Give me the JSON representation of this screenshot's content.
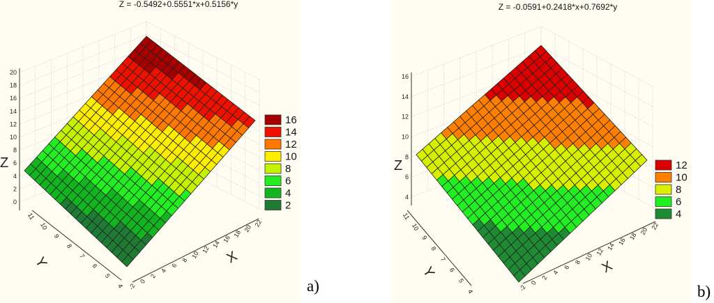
{
  "chart_data": [
    {
      "type": "surface",
      "panel_label": "a)",
      "title": "Z = -0.5492+0.5551*x+0.5156*y",
      "equation": {
        "intercept": -0.5492,
        "cx": 0.5551,
        "cy": 0.5156
      },
      "xlabel": "X",
      "ylabel": "Y",
      "zlabel": "Z",
      "xlim": [
        -2,
        22
      ],
      "ylim": [
        4,
        11
      ],
      "zlim": [
        0,
        20
      ],
      "x_ticks": [
        "-2",
        "0",
        "2",
        "4",
        "6",
        "8",
        "10",
        "12",
        "14",
        "16",
        "18",
        "20",
        "22"
      ],
      "y_ticks": [
        "4",
        "5",
        "6",
        "7",
        "8",
        "9",
        "10",
        "11"
      ],
      "z_ticks": [
        "0",
        "2",
        "4",
        "6",
        "8",
        "10",
        "12",
        "14",
        "16",
        "18",
        "20"
      ],
      "legend": [
        {
          "label": "16",
          "color": "#a80000"
        },
        {
          "label": "14",
          "color": "#ee1100"
        },
        {
          "label": "12",
          "color": "#ff7800"
        },
        {
          "label": "10",
          "color": "#ffee00"
        },
        {
          "label": "8",
          "color": "#c4f200"
        },
        {
          "label": "6",
          "color": "#22ee22"
        },
        {
          "label": "4",
          "color": "#12b420"
        },
        {
          "label": "2",
          "color": "#1f7a34"
        }
      ],
      "legend_placement": "right",
      "grid": true
    },
    {
      "type": "surface",
      "panel_label": "b)",
      "title": "Z = -0.0591+0.2418*x+0.7692*y",
      "equation": {
        "intercept": -0.0591,
        "cx": 0.2418,
        "cy": 0.7692
      },
      "xlabel": "X",
      "ylabel": "Y",
      "zlabel": "Z",
      "xlim": [
        -2,
        22
      ],
      "ylim": [
        4,
        11
      ],
      "zlim": [
        4,
        16
      ],
      "x_ticks": [
        "-2",
        "0",
        "2",
        "4",
        "6",
        "8",
        "10",
        "12",
        "14",
        "16",
        "18",
        "20",
        "22"
      ],
      "y_ticks": [
        "4",
        "5",
        "6",
        "7",
        "8",
        "9",
        "10",
        "11"
      ],
      "z_ticks": [
        "4",
        "6",
        "8",
        "10",
        "12",
        "14",
        "16"
      ],
      "legend": [
        {
          "label": "12",
          "color": "#dd0000"
        },
        {
          "label": "10",
          "color": "#ff8000"
        },
        {
          "label": "8",
          "color": "#d8f000"
        },
        {
          "label": "6",
          "color": "#22ee22"
        },
        {
          "label": "4",
          "color": "#1f8a34"
        }
      ],
      "legend_placement": "right",
      "grid": true
    }
  ]
}
